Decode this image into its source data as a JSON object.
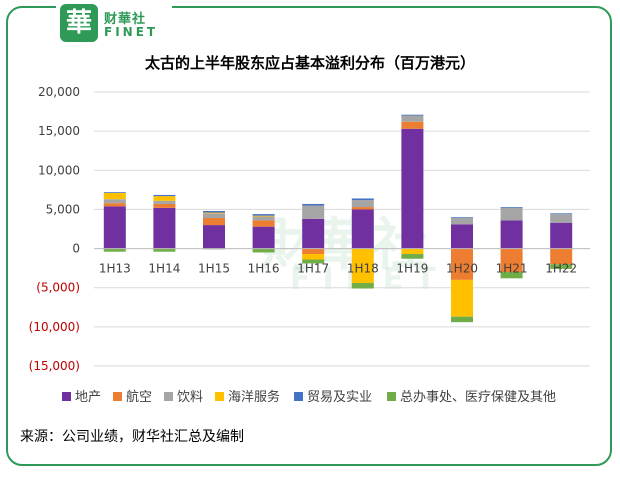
{
  "brand": {
    "badge": "華",
    "name_cn": "财華社",
    "name_en": "FINET"
  },
  "footer": {
    "source": "来源：公司业绩，财华社汇总及编制"
  },
  "colors": {
    "frame": "#2f9a57"
  },
  "chart_data": {
    "type": "bar",
    "stacked": true,
    "title": "太古的上半年股东应占基本溢利分布（百万港元）",
    "categories": [
      "1H13",
      "1H14",
      "1H15",
      "1H16",
      "1H17",
      "1H18",
      "1H19",
      "1H20",
      "1H21",
      "1H22"
    ],
    "ylim": [
      -15000,
      20000
    ],
    "yticks": [
      20000,
      15000,
      10000,
      5000,
      0,
      -5000,
      -10000,
      -15000
    ],
    "ytick_labels": [
      "20,000",
      "15,000",
      "10,000",
      "5,000",
      "0",
      "(5,000)",
      "(10,000)",
      "(15,000)"
    ],
    "grid": true,
    "legend_position": "bottom",
    "series": [
      {
        "name": "地产",
        "color": "#7030a0",
        "values": [
          5400,
          5200,
          3000,
          2800,
          3800,
          5000,
          15300,
          3100,
          3600,
          3300
        ]
      },
      {
        "name": "航空",
        "color": "#ed7d31",
        "values": [
          400,
          500,
          900,
          800,
          -700,
          300,
          900,
          -4000,
          -3000,
          -2000
        ]
      },
      {
        "name": "饮料",
        "color": "#a5a5a5",
        "values": [
          500,
          400,
          600,
          500,
          1700,
          900,
          800,
          800,
          1600,
          1100
        ]
      },
      {
        "name": "海洋服务",
        "color": "#ffc000",
        "values": [
          800,
          600,
          100,
          100,
          -700,
          -4400,
          -700,
          -4700,
          0,
          0
        ]
      },
      {
        "name": "贸易及实业",
        "color": "#4472c4",
        "values": [
          100,
          150,
          200,
          200,
          200,
          200,
          100,
          100,
          100,
          100
        ]
      },
      {
        "name": "总办事处、医疗保健及其他",
        "color": "#70ad47",
        "values": [
          -400,
          -400,
          -100,
          -500,
          -500,
          -700,
          -600,
          -700,
          -800,
          -600
        ]
      }
    ]
  }
}
